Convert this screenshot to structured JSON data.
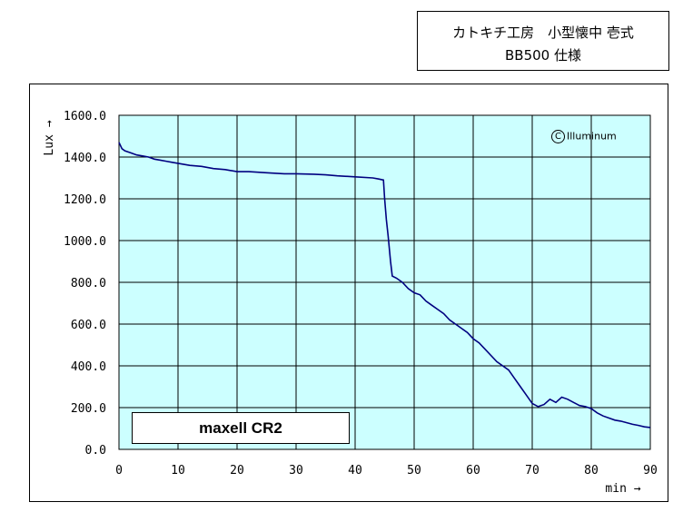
{
  "title": {
    "line1": "カトキチ工房　小型懐中 壱式",
    "line2": "BB500 仕様"
  },
  "watermark": {
    "symbol": "C",
    "text": "Illuminum"
  },
  "chart_data": {
    "type": "line",
    "title": "",
    "xlabel": "min →",
    "ylabel": "Lux →",
    "xlim": [
      0,
      90
    ],
    "ylim": [
      0,
      1600
    ],
    "x_ticks": [
      0,
      10,
      20,
      30,
      40,
      50,
      60,
      70,
      80,
      90
    ],
    "y_ticks": [
      "0.0",
      "200.0",
      "400.0",
      "600.0",
      "800.0",
      "1000.0",
      "1200.0",
      "1400.0",
      "1600.0"
    ],
    "grid": true,
    "plot_background": "#CCFFFF",
    "series": [
      {
        "name": "maxell CR2",
        "color": "#000080",
        "points": [
          [
            0,
            1470
          ],
          [
            0.5,
            1440
          ],
          [
            1,
            1430
          ],
          [
            2,
            1420
          ],
          [
            3,
            1410
          ],
          [
            4,
            1405
          ],
          [
            5,
            1400
          ],
          [
            6,
            1390
          ],
          [
            7,
            1385
          ],
          [
            8,
            1380
          ],
          [
            9,
            1375
          ],
          [
            10,
            1370
          ],
          [
            12,
            1360
          ],
          [
            14,
            1355
          ],
          [
            16,
            1345
          ],
          [
            18,
            1340
          ],
          [
            20,
            1330
          ],
          [
            22,
            1330
          ],
          [
            25,
            1325
          ],
          [
            28,
            1320
          ],
          [
            30,
            1320
          ],
          [
            33,
            1318
          ],
          [
            35,
            1315
          ],
          [
            37,
            1310
          ],
          [
            40,
            1305
          ],
          [
            43,
            1300
          ],
          [
            44,
            1295
          ],
          [
            44.8,
            1290
          ],
          [
            45,
            1200
          ],
          [
            45.3,
            1100
          ],
          [
            45.6,
            1020
          ],
          [
            46,
            900
          ],
          [
            46.3,
            830
          ],
          [
            47,
            820
          ],
          [
            48,
            800
          ],
          [
            49,
            770
          ],
          [
            50,
            750
          ],
          [
            51,
            740
          ],
          [
            52,
            710
          ],
          [
            53,
            690
          ],
          [
            54,
            670
          ],
          [
            55,
            650
          ],
          [
            56,
            620
          ],
          [
            57,
            600
          ],
          [
            58,
            580
          ],
          [
            59,
            560
          ],
          [
            60,
            530
          ],
          [
            61,
            510
          ],
          [
            62,
            480
          ],
          [
            63,
            450
          ],
          [
            64,
            420
          ],
          [
            65,
            400
          ],
          [
            66,
            380
          ],
          [
            67,
            340
          ],
          [
            68,
            300
          ],
          [
            69,
            260
          ],
          [
            70,
            220
          ],
          [
            71,
            205
          ],
          [
            72,
            215
          ],
          [
            73,
            240
          ],
          [
            74,
            225
          ],
          [
            75,
            250
          ],
          [
            76,
            240
          ],
          [
            77,
            225
          ],
          [
            78,
            210
          ],
          [
            79,
            205
          ],
          [
            80,
            195
          ],
          [
            81,
            175
          ],
          [
            82,
            160
          ],
          [
            83,
            150
          ],
          [
            84,
            140
          ],
          [
            85,
            135
          ],
          [
            86,
            128
          ],
          [
            87,
            120
          ],
          [
            88,
            115
          ],
          [
            89,
            108
          ],
          [
            90,
            105
          ]
        ]
      }
    ]
  }
}
